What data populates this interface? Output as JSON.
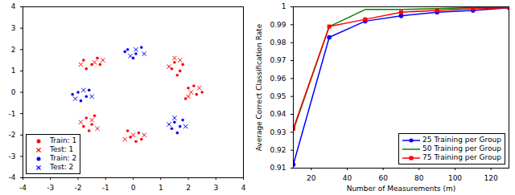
{
  "chart_data": [
    {
      "type": "scatter",
      "xlim": [
        -4,
        4
      ],
      "ylim": [
        -4,
        4
      ],
      "xticks": [
        -4,
        -3,
        -2,
        -1,
        0,
        1,
        2,
        3,
        4
      ],
      "yticks": [
        -4,
        -3,
        -2,
        -1,
        0,
        1,
        2,
        3,
        4
      ],
      "grid": false,
      "legend": "lower left",
      "series": [
        {
          "name": "Train: 1",
          "color": "#ff0000",
          "marker": "o",
          "x": [
            -1.8,
            -1.5,
            -1.3,
            -1.7,
            -1.2,
            1.5,
            1.7,
            1.4,
            1.8,
            1.6,
            2.0,
            2.3,
            1.9,
            2.2,
            2.5,
            -0.1,
            0.2,
            0.3,
            -0.2,
            0.1,
            -1.7,
            -1.5,
            -1.8,
            -1.4,
            -1.6
          ],
          "y": [
            1.5,
            1.3,
            1.6,
            1.1,
            1.3,
            1.4,
            1.0,
            1.1,
            1.3,
            0.8,
            0.2,
            -0.1,
            -0.3,
            0.3,
            0.0,
            -2.1,
            -1.9,
            -2.2,
            -1.8,
            -2.3,
            -1.2,
            -1.5,
            -1.6,
            -1.1,
            -1.8
          ]
        },
        {
          "name": "Test: 1",
          "color": "#ff0000",
          "marker": "x",
          "x": [
            -1.4,
            -1.9,
            -1.1,
            1.5,
            1.3,
            1.7,
            2.1,
            2.4,
            2.0,
            0.0,
            0.4,
            -0.3,
            -1.9,
            -1.5,
            -1.3
          ],
          "y": [
            1.4,
            1.3,
            1.5,
            1.6,
            1.2,
            1.5,
            0.0,
            0.2,
            -0.2,
            -2.0,
            -2.0,
            -2.2,
            -1.4,
            -1.3,
            -1.7
          ]
        },
        {
          "name": "Train: 2",
          "color": "#0000ff",
          "marker": "o",
          "x": [
            -0.2,
            0.1,
            0.3,
            0.0,
            -0.3,
            -2.0,
            -1.7,
            -1.9,
            -1.6,
            -2.2,
            1.5,
            1.7,
            1.4,
            1.8,
            1.6
          ],
          "y": [
            2.0,
            1.8,
            2.1,
            1.6,
            1.9,
            0.0,
            -0.2,
            -0.4,
            0.1,
            -0.1,
            -1.4,
            -1.6,
            -1.7,
            -1.3,
            -1.9
          ]
        },
        {
          "name": "Test: 2",
          "color": "#0000ff",
          "marker": "x",
          "x": [
            0.1,
            -0.1,
            0.4,
            -1.8,
            -2.1,
            -1.5,
            1.5,
            1.9,
            1.3
          ],
          "y": [
            2.0,
            1.7,
            1.8,
            0.1,
            -0.3,
            -0.2,
            -1.2,
            -1.6,
            -1.5
          ]
        }
      ]
    },
    {
      "type": "line",
      "xlabel": "Number of Measurements (m)",
      "ylabel": "Average Correct Classification Rate",
      "x": [
        10,
        30,
        50,
        70,
        90,
        110,
        130
      ],
      "xlim": [
        10,
        130
      ],
      "xticks": [
        20,
        40,
        60,
        80,
        100,
        120
      ],
      "ylim": [
        0.91,
        1
      ],
      "yticks": [
        0.91,
        0.92,
        0.93,
        0.94,
        0.95,
        0.96,
        0.97,
        0.98,
        0.99,
        1
      ],
      "grid": false,
      "legend": "lower right",
      "series": [
        {
          "name": "25 Training per Group",
          "color": "#0000ff",
          "marker": "o",
          "line_style": "solid",
          "values": [
            0.912,
            0.983,
            0.992,
            0.995,
            0.997,
            0.998,
            0.9995
          ]
        },
        {
          "name": "50 Training per Group",
          "color": "#008000",
          "marker": "none",
          "line_style": "solid",
          "values": [
            0.931,
            0.989,
            0.9985,
            0.9985,
            0.999,
            0.9995,
            0.9995
          ]
        },
        {
          "name": "75 Training per Group",
          "color": "#ff0000",
          "marker": "s",
          "line_style": "solid",
          "values": [
            0.932,
            0.989,
            0.993,
            0.997,
            0.998,
            0.999,
            0.9995
          ]
        }
      ]
    }
  ]
}
